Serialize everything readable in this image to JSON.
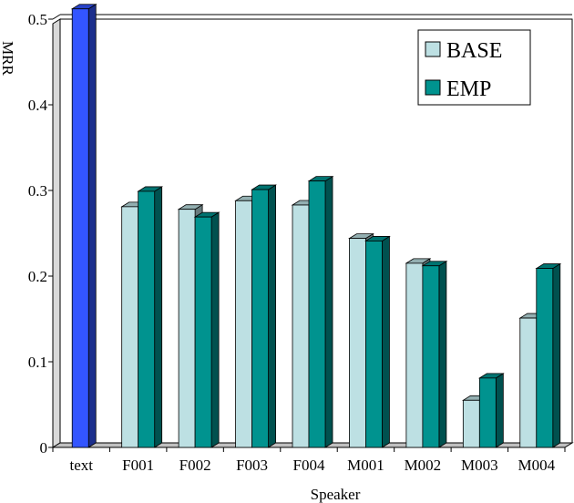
{
  "chart_data": {
    "type": "bar",
    "title": "",
    "xlabel": "Speaker",
    "ylabel": "MRR",
    "ylim": [
      0,
      0.5
    ],
    "yticks": [
      "0",
      "0.1",
      "0.2",
      "0.3",
      "0.4",
      "0.5"
    ],
    "categories": [
      "text",
      "F001",
      "F002",
      "F003",
      "F004",
      "M001",
      "M002",
      "M003",
      "M004"
    ],
    "single": {
      "category": "text",
      "value": 0.512,
      "color": "#3355ff"
    },
    "series": [
      {
        "name": "BASE",
        "color": "#bde0e3",
        "values": [
          null,
          0.281,
          0.278,
          0.288,
          0.283,
          0.244,
          0.215,
          0.055,
          0.151
        ]
      },
      {
        "name": "EMP",
        "color": "#00938f",
        "values": [
          null,
          0.299,
          0.269,
          0.301,
          0.311,
          0.241,
          0.212,
          0.081,
          0.209
        ]
      }
    ],
    "grid": true,
    "legend_position": "top-right"
  }
}
